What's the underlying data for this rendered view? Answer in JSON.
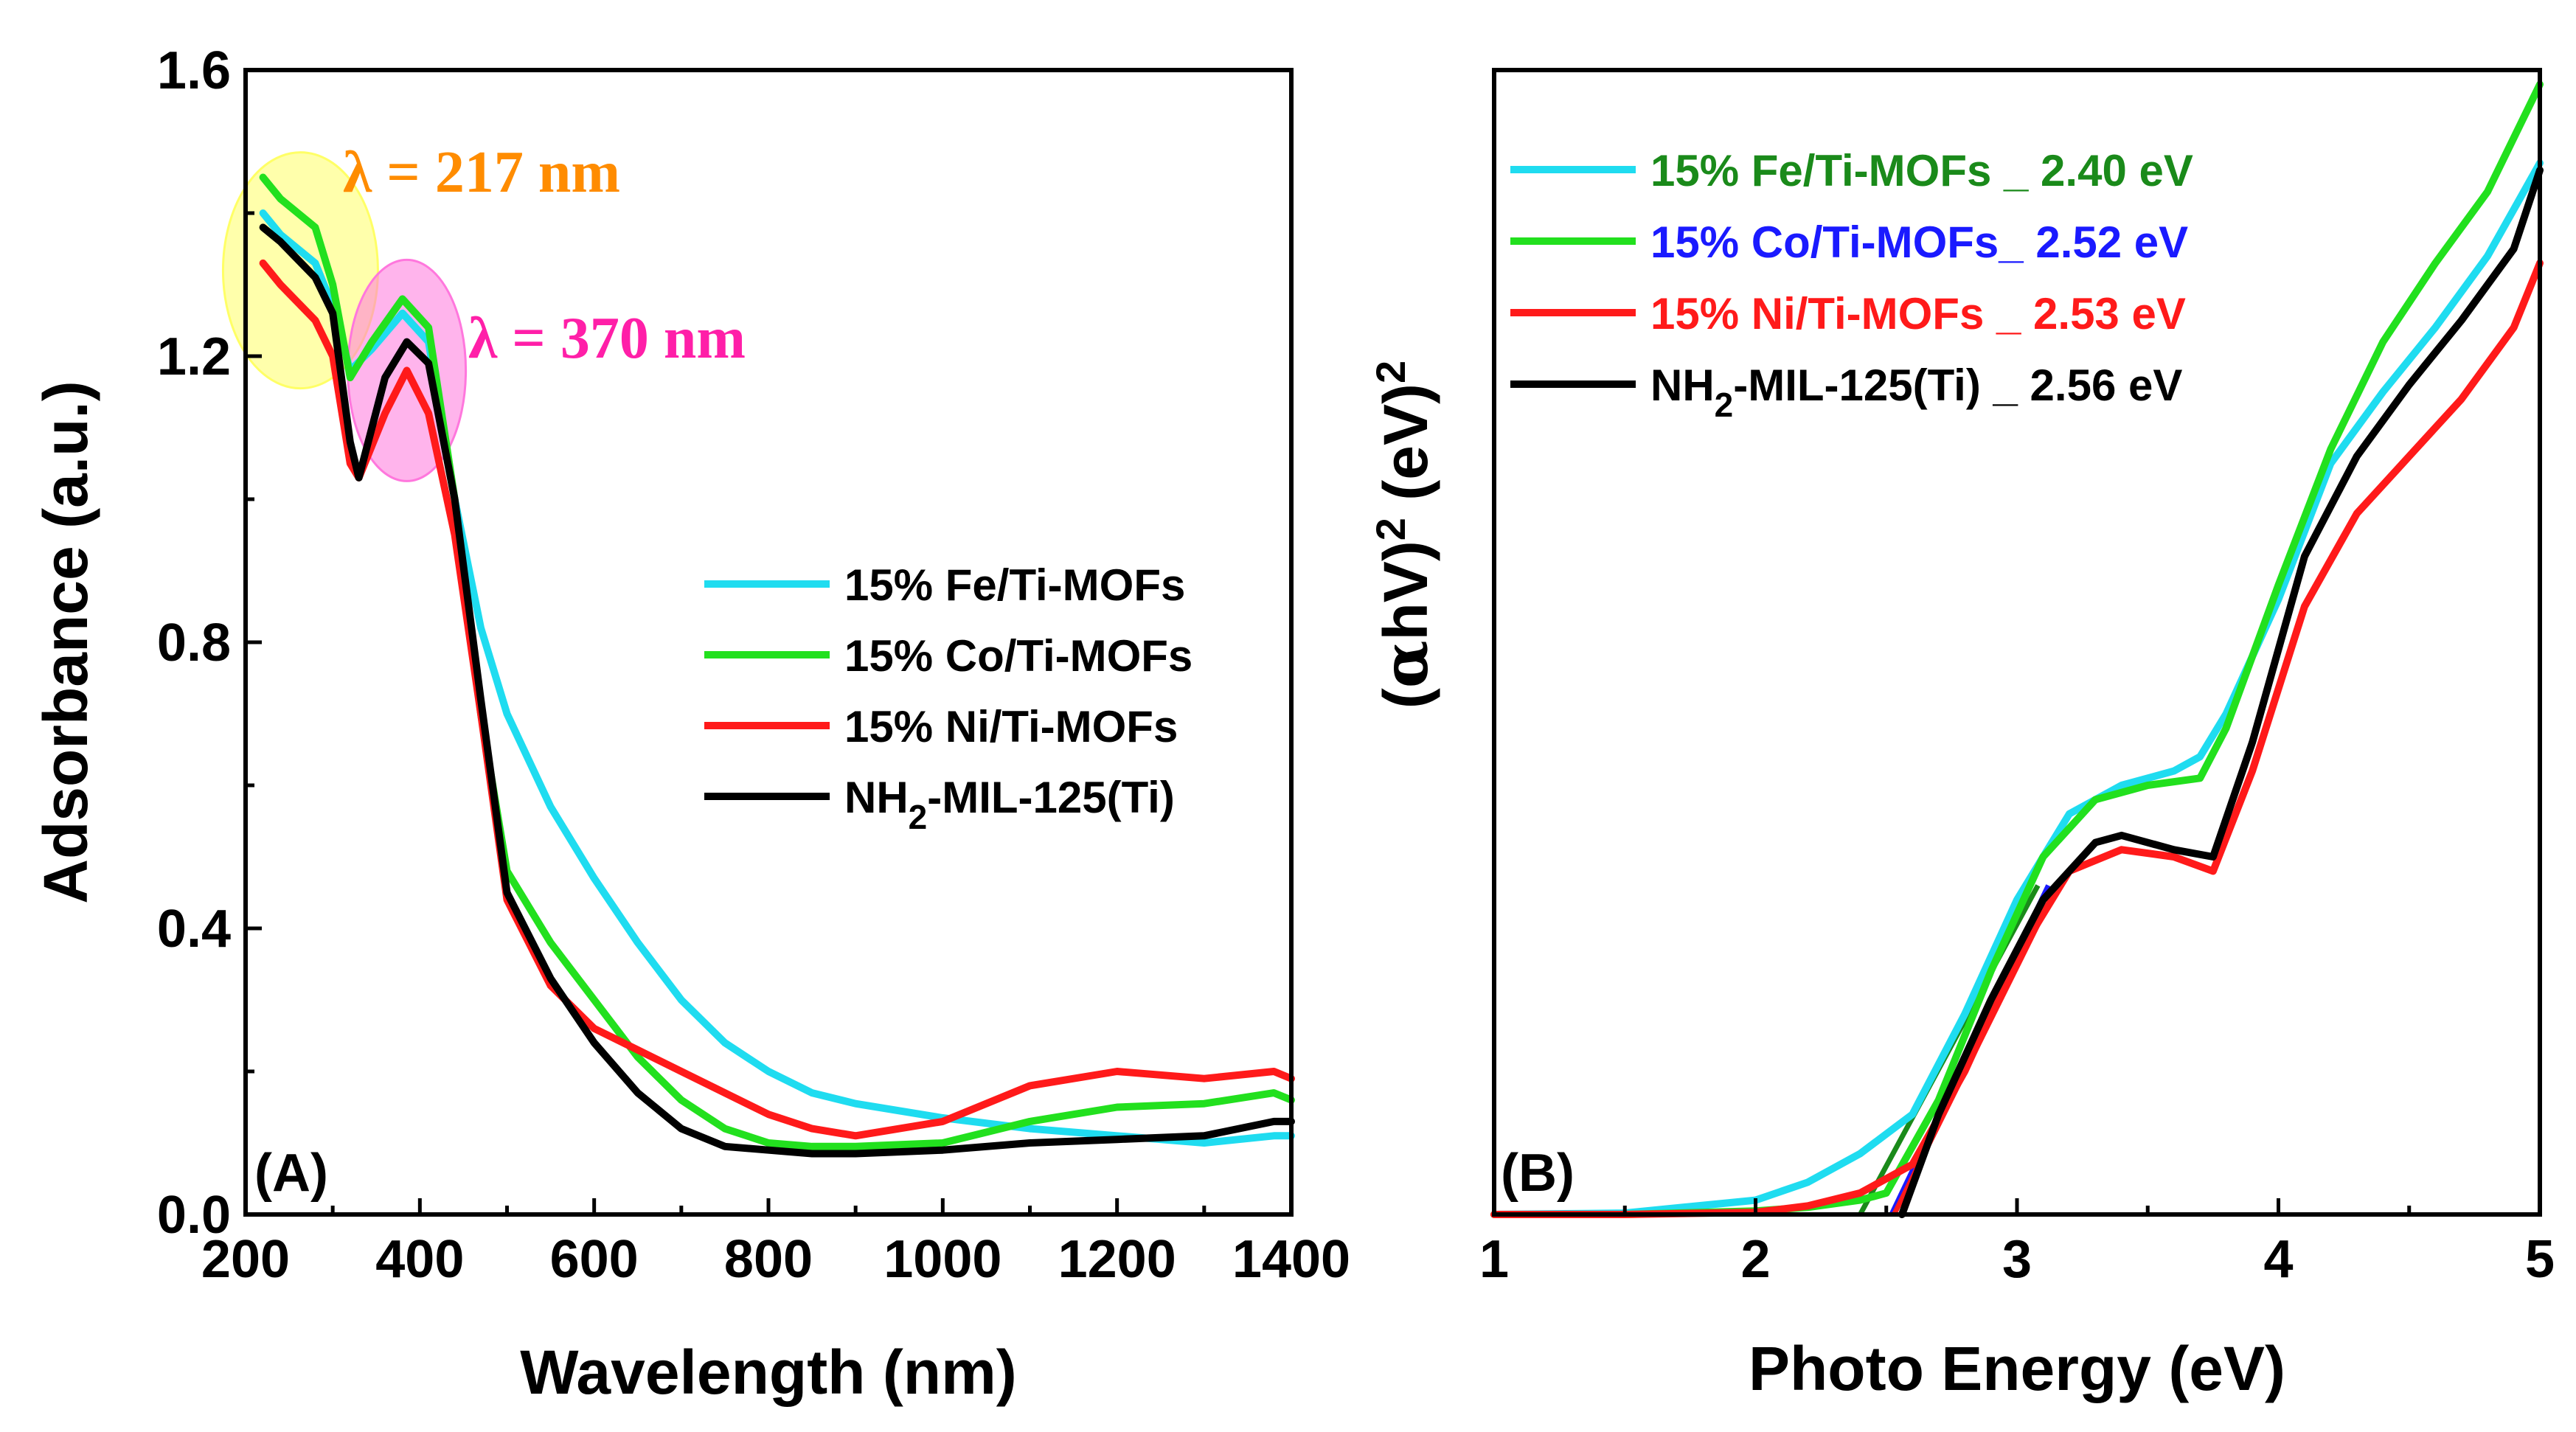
{
  "chart_data": [
    {
      "type": "line",
      "panel_label": "(A)",
      "xlabel": "Wavelength (nm)",
      "ylabel": "Adsorbance (a.u.)",
      "xlim": [
        200,
        1400
      ],
      "ylim": [
        0.0,
        1.6
      ],
      "xticks": [
        "200",
        "400",
        "600",
        "800",
        "1000",
        "1200",
        "1400"
      ],
      "yticks": [
        "0.0",
        "0.4",
        "0.8",
        "1.2",
        "1.6"
      ],
      "legend_position": "center-right",
      "annotations": [
        {
          "text": "λ = 217 nm",
          "color": "#ff8c00",
          "highlight": "#ffff66",
          "at": [
            263,
            1.32
          ]
        },
        {
          "text": "λ = 370 nm",
          "color": "#ff1fa8",
          "highlight": "#ff77dd",
          "at": [
            385,
            1.18
          ]
        }
      ],
      "series": [
        {
          "name": "15% Fe/Ti-MOFs",
          "color": "#1fdcf0",
          "x": [
            220,
            240,
            280,
            300,
            320,
            345,
            380,
            410,
            440,
            470,
            500,
            550,
            600,
            650,
            700,
            750,
            800,
            850,
            900,
            1000,
            1100,
            1200,
            1300,
            1380,
            1400
          ],
          "y": [
            1.4,
            1.37,
            1.33,
            1.27,
            1.18,
            1.21,
            1.26,
            1.22,
            1.0,
            0.82,
            0.7,
            0.57,
            0.47,
            0.38,
            0.3,
            0.24,
            0.2,
            0.17,
            0.155,
            0.135,
            0.12,
            0.11,
            0.1,
            0.11,
            0.11
          ]
        },
        {
          "name": "15% Co/Ti-MOFs",
          "color": "#22e01e",
          "x": [
            220,
            240,
            280,
            300,
            320,
            345,
            380,
            410,
            440,
            470,
            500,
            550,
            600,
            650,
            700,
            750,
            800,
            850,
            900,
            1000,
            1100,
            1200,
            1300,
            1380,
            1400
          ],
          "y": [
            1.45,
            1.42,
            1.38,
            1.3,
            1.17,
            1.22,
            1.28,
            1.24,
            1.0,
            0.7,
            0.48,
            0.38,
            0.3,
            0.22,
            0.16,
            0.12,
            0.1,
            0.095,
            0.095,
            0.1,
            0.13,
            0.15,
            0.155,
            0.17,
            0.16
          ]
        },
        {
          "name": "15% Ni/Ti-MOFs",
          "color": "#ff1a1a",
          "x": [
            220,
            240,
            280,
            300,
            320,
            330,
            360,
            385,
            410,
            440,
            470,
            500,
            550,
            600,
            650,
            700,
            750,
            800,
            850,
            900,
            1000,
            1100,
            1200,
            1300,
            1380,
            1400
          ],
          "y": [
            1.33,
            1.3,
            1.25,
            1.2,
            1.05,
            1.03,
            1.12,
            1.18,
            1.12,
            0.95,
            0.7,
            0.44,
            0.32,
            0.26,
            0.23,
            0.2,
            0.17,
            0.14,
            0.12,
            0.11,
            0.13,
            0.18,
            0.2,
            0.19,
            0.2,
            0.19
          ]
        },
        {
          "name": "NH2-MIL-125(Ti)",
          "color": "#000000",
          "x": [
            220,
            240,
            280,
            300,
            320,
            330,
            360,
            385,
            410,
            440,
            470,
            500,
            550,
            600,
            650,
            700,
            750,
            800,
            850,
            900,
            1000,
            1100,
            1200,
            1300,
            1380,
            1400
          ],
          "y": [
            1.38,
            1.36,
            1.31,
            1.26,
            1.08,
            1.03,
            1.17,
            1.22,
            1.19,
            1.0,
            0.72,
            0.45,
            0.33,
            0.24,
            0.17,
            0.12,
            0.095,
            0.09,
            0.085,
            0.085,
            0.09,
            0.1,
            0.105,
            0.11,
            0.13,
            0.13
          ]
        }
      ]
    },
    {
      "type": "line",
      "panel_label": "(B)",
      "xlabel": "Photo Energy (eV)",
      "ylabel": "(αhV)² (eV)²",
      "xlim": [
        1,
        5
      ],
      "ylim": [
        0,
        1.6
      ],
      "xticks": [
        "1",
        "2",
        "3",
        "4",
        "5"
      ],
      "legend_position": "top-left",
      "series": [
        {
          "name": "15% Fe/Ti-MOFs",
          "legend_label": "15% Fe/Ti-MOFs _ 2.40 eV",
          "color": "#1fdcf0",
          "text_color": "#1a8a1a",
          "band_gap": 2.4,
          "x": [
            1.0,
            1.5,
            2.0,
            2.2,
            2.4,
            2.6,
            2.8,
            3.0,
            3.2,
            3.4,
            3.6,
            3.7,
            3.8,
            4.0,
            4.2,
            4.4,
            4.6,
            4.8,
            5.0
          ],
          "y": [
            0.0,
            0.002,
            0.02,
            0.045,
            0.085,
            0.14,
            0.28,
            0.44,
            0.56,
            0.6,
            0.62,
            0.64,
            0.7,
            0.86,
            1.05,
            1.15,
            1.24,
            1.34,
            1.47
          ]
        },
        {
          "name": "15% Co/Ti-MOFs",
          "legend_label": "15% Co/Ti-MOFs_ 2.52 eV",
          "color": "#22e01e",
          "text_color": "#1a1aff",
          "band_gap": 2.52,
          "x": [
            1.0,
            1.5,
            2.0,
            2.2,
            2.4,
            2.5,
            2.7,
            2.9,
            3.1,
            3.3,
            3.5,
            3.7,
            3.8,
            4.0,
            4.2,
            4.4,
            4.6,
            4.8,
            5.0
          ],
          "y": [
            0.0,
            0.0,
            0.005,
            0.01,
            0.02,
            0.03,
            0.16,
            0.34,
            0.5,
            0.58,
            0.6,
            0.61,
            0.68,
            0.88,
            1.07,
            1.22,
            1.33,
            1.43,
            1.58
          ]
        },
        {
          "name": "15% Ni/Ti-MOFs",
          "legend_label": "15% Ni/Ti-MOFs _ 2.53 eV",
          "color": "#ff1a1a",
          "text_color": "#ff1a1a",
          "band_gap": 2.53,
          "x": [
            1.0,
            1.5,
            2.0,
            2.2,
            2.4,
            2.6,
            2.8,
            3.0,
            3.2,
            3.4,
            3.6,
            3.75,
            3.9,
            4.1,
            4.3,
            4.5,
            4.7,
            4.9,
            5.0
          ],
          "y": [
            0.0,
            0.0,
            0.003,
            0.012,
            0.03,
            0.07,
            0.2,
            0.36,
            0.48,
            0.51,
            0.5,
            0.48,
            0.62,
            0.85,
            0.98,
            1.06,
            1.14,
            1.24,
            1.33
          ]
        },
        {
          "name": "NH2-MIL-125(Ti)",
          "legend_label_main": "NH",
          "legend_label_sub": "2",
          "legend_label_rest": "-MIL-125(Ti) _ 2.56 eV",
          "color": "#000000",
          "text_color": "#000000",
          "band_gap": 2.56,
          "x": [
            2.56,
            2.7,
            2.9,
            3.1,
            3.3,
            3.4,
            3.6,
            3.75,
            3.9,
            4.1,
            4.3,
            4.5,
            4.7,
            4.9,
            5.0
          ],
          "y": [
            0.0,
            0.14,
            0.3,
            0.44,
            0.52,
            0.53,
            0.51,
            0.5,
            0.66,
            0.92,
            1.06,
            1.16,
            1.25,
            1.35,
            1.46
          ]
        }
      ],
      "fit_lines": [
        {
          "color": "#1a8a1a",
          "x": [
            2.4,
            3.08
          ],
          "y": [
            0.0,
            0.46
          ]
        },
        {
          "color": "#1a1aff",
          "x": [
            2.52,
            3.12
          ],
          "y": [
            0.0,
            0.46
          ]
        },
        {
          "color": "#ff1a1a",
          "x": [
            2.53,
            3.1
          ],
          "y": [
            0.0,
            0.42
          ]
        }
      ]
    }
  ]
}
